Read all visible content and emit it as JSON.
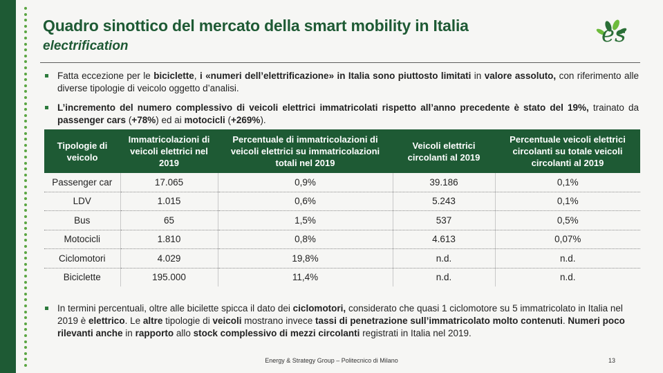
{
  "header": {
    "title": "Quadro sinottico del mercato della smart mobility in Italia",
    "subtitle": "electrification",
    "logo_text": "es"
  },
  "bullets": [
    [
      {
        "t": "Fatta eccezione per le ",
        "b": false
      },
      {
        "t": "biciclette",
        "b": true
      },
      {
        "t": ", ",
        "b": false
      },
      {
        "t": "i «numeri dell’elettrificazione» in Italia sono piuttosto limitati",
        "b": true
      },
      {
        "t": " in ",
        "b": false
      },
      {
        "t": "valore assoluto,",
        "b": true
      },
      {
        "t": " con riferimento alle diverse tipologie di veicolo oggetto d’analisi.",
        "b": false
      }
    ],
    [
      {
        "t": "L’incremento del numero complessivo di veicoli elettrici immatricolati rispetto all’anno precedente è stato del 19%,",
        "b": true
      },
      {
        "t": " trainato da ",
        "b": false
      },
      {
        "t": "passenger cars",
        "b": true
      },
      {
        "t": " (",
        "b": false
      },
      {
        "t": "+78%",
        "b": true
      },
      {
        "t": ") ed ai ",
        "b": false
      },
      {
        "t": "motocicli",
        "b": true
      },
      {
        "t": " (",
        "b": false
      },
      {
        "t": "+269%",
        "b": true
      },
      {
        "t": ").",
        "b": false
      }
    ],
    [
      {
        "t": "In termini percentuali, oltre alle bicilette spicca il dato dei ",
        "b": false
      },
      {
        "t": "ciclomotori,",
        "b": true
      },
      {
        "t": " considerato che quasi 1 ciclomotore su 5 immatricolato in Italia nel 2019 è ",
        "b": false
      },
      {
        "t": "elettrico",
        "b": true
      },
      {
        "t": ". Le ",
        "b": false
      },
      {
        "t": "altre",
        "b": true
      },
      {
        "t": " tipologie di ",
        "b": false
      },
      {
        "t": "veicoli",
        "b": true
      },
      {
        "t": " mostrano invece ",
        "b": false
      },
      {
        "t": "tassi di penetrazione sull’immatricolato molto contenuti",
        "b": true
      },
      {
        "t": ". ",
        "b": false
      },
      {
        "t": "Numeri poco rilevanti anche",
        "b": true
      },
      {
        "t": " in ",
        "b": false
      },
      {
        "t": "rapporto",
        "b": true
      },
      {
        "t": " allo ",
        "b": false
      },
      {
        "t": "stock complessivo di mezzi circolanti",
        "b": true
      },
      {
        "t": " registrati in Italia nel 2019.",
        "b": false
      }
    ]
  ],
  "table": {
    "headers": [
      "Tipologie di veicolo",
      "Immatricolazioni di veicoli elettrici nel 2019",
      "Percentuale di immatricolazioni di veicoli elettrici su immatricolazioni totali nel 2019",
      "Veicoli elettrici circolanti al 2019",
      "Percentuale veicoli elettrici circolanti su totale veicoli circolanti al 2019"
    ],
    "rows": [
      [
        "Passenger car",
        "17.065",
        "0,9%",
        "39.186",
        "0,1%"
      ],
      [
        "LDV",
        "1.015",
        "0,6%",
        "5.243",
        "0,1%"
      ],
      [
        "Bus",
        "65",
        "1,5%",
        "537",
        "0,5%"
      ],
      [
        "Motocicli",
        "1.810",
        "0,8%",
        "4.613",
        "0,07%"
      ],
      [
        "Ciclomotori",
        "4.029",
        "19,8%",
        "n.d.",
        "n.d."
      ],
      [
        "Biciclette",
        "195.000",
        "11,4%",
        "n.d.",
        "n.d."
      ]
    ]
  },
  "footer": {
    "text": "Energy & Strategy Group – Politecnico di Milano",
    "page_number": "13"
  },
  "colors": {
    "brand_green": "#1e5a34",
    "accent_green": "#5aa542",
    "bullet_green": "#2c7a3c"
  }
}
